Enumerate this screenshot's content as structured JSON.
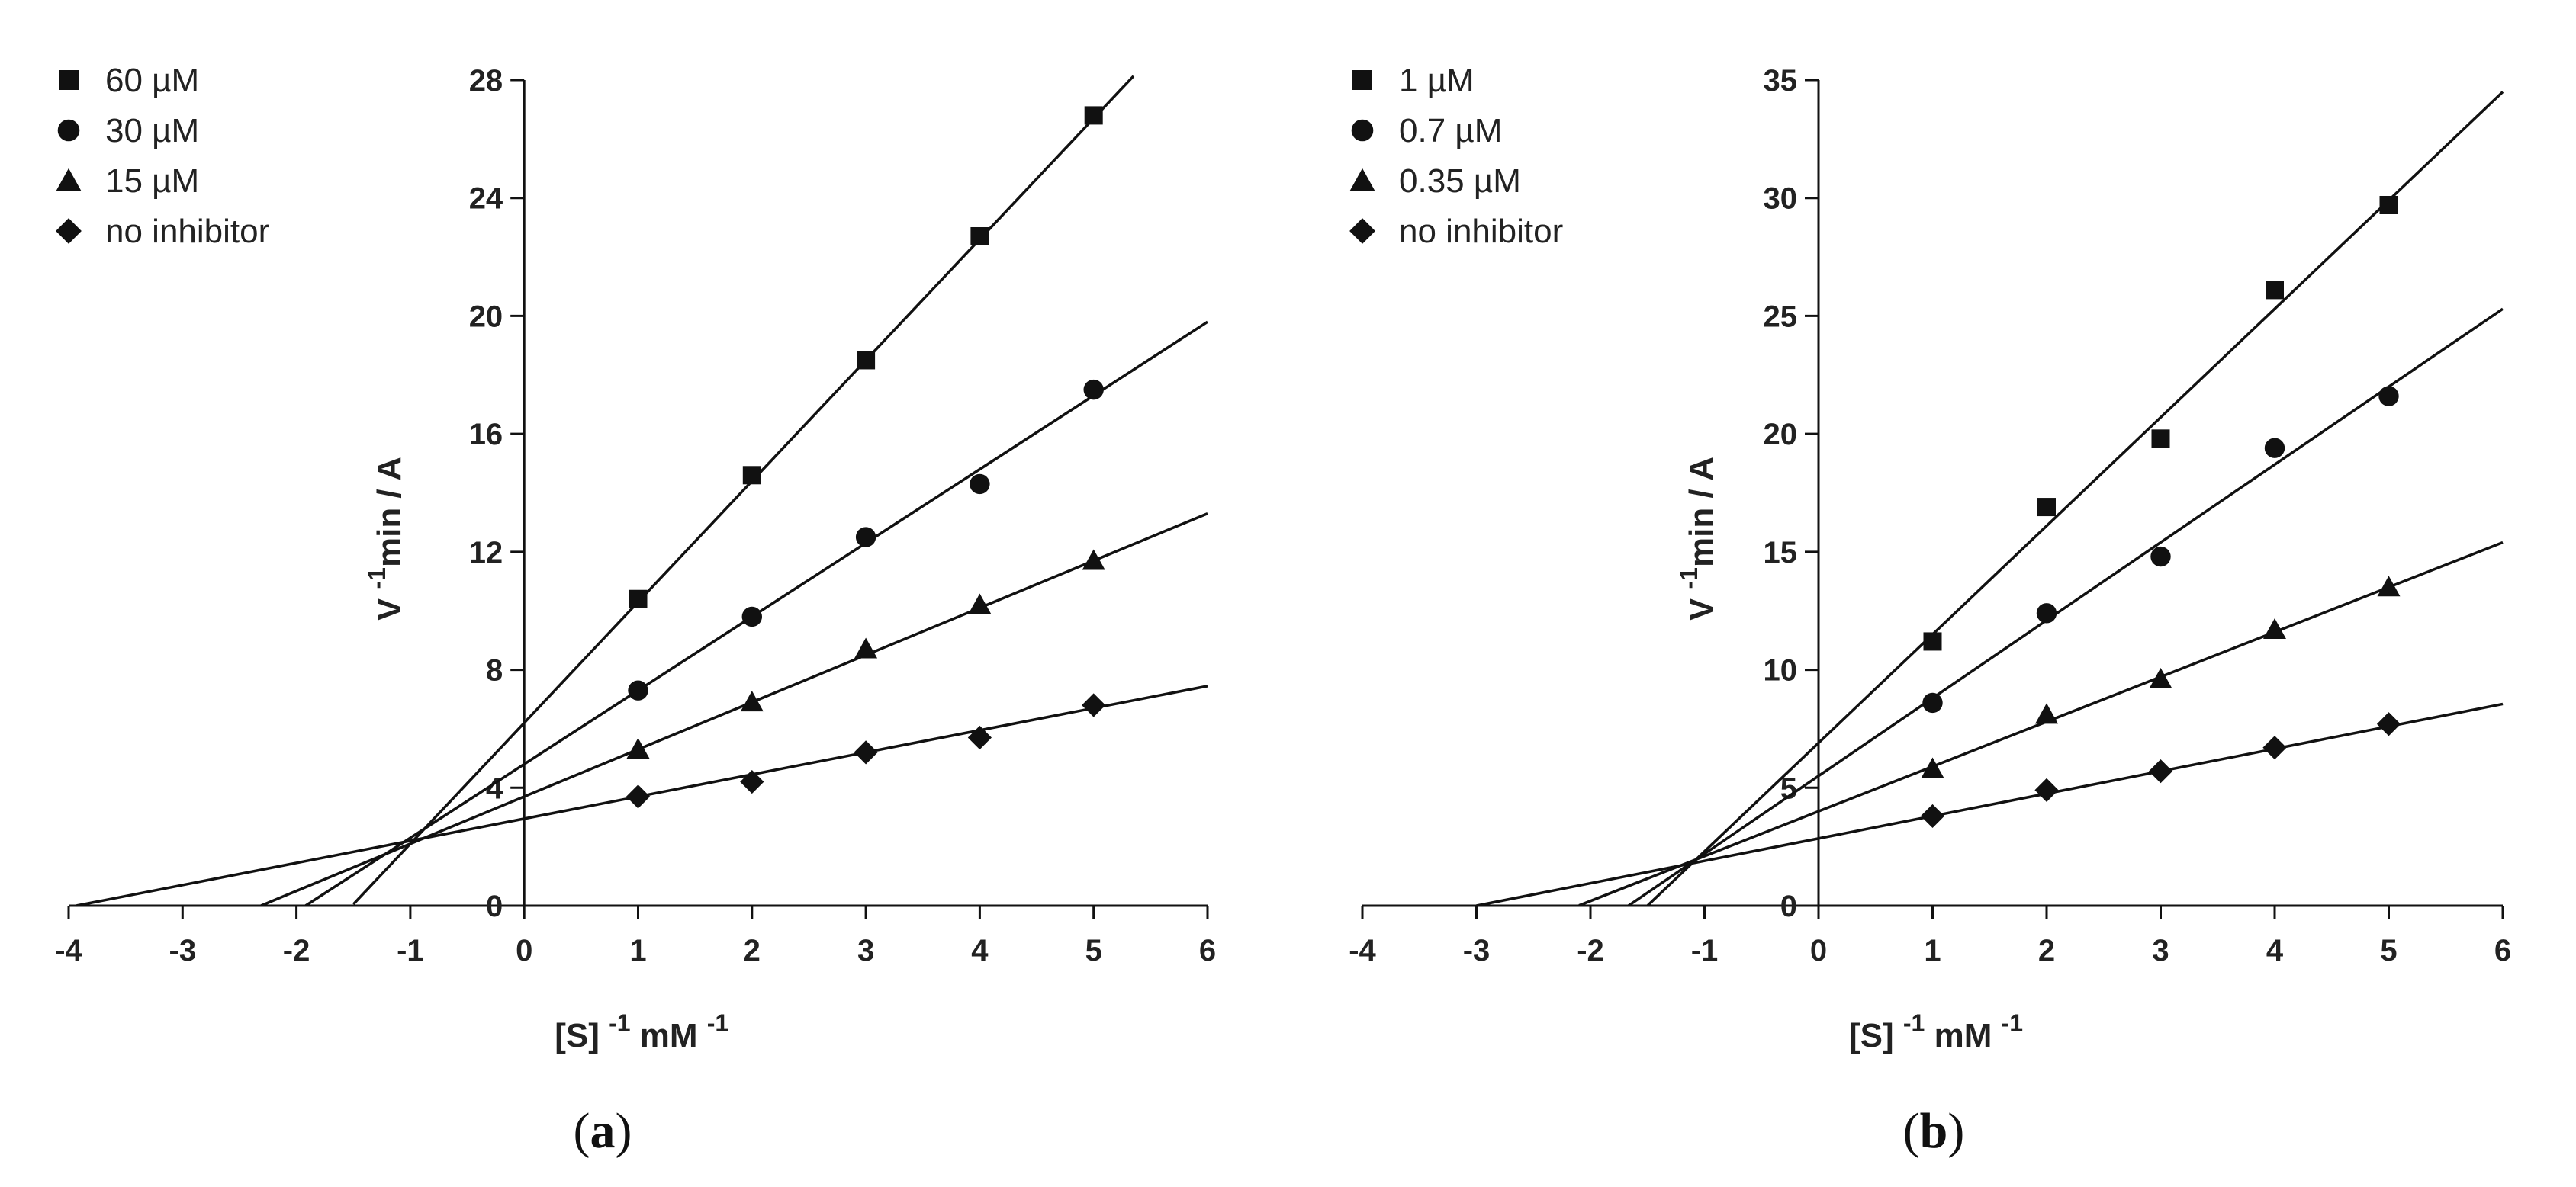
{
  "chart_data": [
    {
      "type": "scatter",
      "panel_label": "a",
      "panel_caption": "(a)",
      "xlabel": "[S] -1 mM -1",
      "ylabel": "V -1min / A",
      "xlim": [
        -4,
        6
      ],
      "ylim": [
        0,
        28
      ],
      "xticks": [
        -4,
        -3,
        -2,
        -1,
        0,
        1,
        2,
        3,
        4,
        5,
        6
      ],
      "yticks": [
        0,
        4,
        8,
        12,
        16,
        20,
        24,
        28
      ],
      "x": [
        1,
        2,
        3,
        4,
        5
      ],
      "series": [
        {
          "name": "60 µM",
          "marker": "square",
          "values": [
            10.4,
            14.6,
            18.5,
            22.7,
            26.8
          ],
          "fit": {
            "slope": 4.1,
            "intercept": 6.2,
            "x_range": [
              -1.5,
              5.35
            ]
          }
        },
        {
          "name": "30 µM",
          "marker": "circle",
          "values": [
            7.3,
            9.8,
            12.5,
            14.3,
            17.5
          ],
          "fit": {
            "slope": 2.5,
            "intercept": 4.8,
            "x_range": [
              -1.92,
              6
            ]
          }
        },
        {
          "name": "15 µM",
          "marker": "triangle",
          "values": [
            5.3,
            6.9,
            8.7,
            10.2,
            11.7
          ],
          "fit": {
            "slope": 1.6,
            "intercept": 3.7,
            "x_range": [
              -2.31,
              6
            ]
          }
        },
        {
          "name": "no inhibitor",
          "marker": "diamond",
          "values": [
            3.7,
            4.2,
            5.2,
            5.7,
            6.8
          ],
          "fit": {
            "slope": 0.75,
            "intercept": 2.95,
            "x_range": [
              -3.93,
              6
            ]
          }
        }
      ]
    },
    {
      "type": "scatter",
      "panel_label": "b",
      "panel_caption": "(b)",
      "xlabel": "[S] -1 mM -1",
      "ylabel": "V -1min / A",
      "xlim": [
        -4,
        6
      ],
      "ylim": [
        0,
        35
      ],
      "xticks": [
        -4,
        -3,
        -2,
        -1,
        0,
        1,
        2,
        3,
        4,
        5,
        6
      ],
      "yticks": [
        0,
        5,
        10,
        15,
        20,
        25,
        30,
        35
      ],
      "x": [
        1,
        2,
        3,
        4,
        5
      ],
      "series": [
        {
          "name": "1 µM",
          "marker": "square",
          "values": [
            11.2,
            16.9,
            19.8,
            26.1,
            29.7
          ],
          "fit": {
            "slope": 4.6,
            "intercept": 6.9,
            "x_range": [
              -1.5,
              6
            ]
          }
        },
        {
          "name": "0.7 µM",
          "marker": "circle",
          "values": [
            8.6,
            12.4,
            14.8,
            19.4,
            21.6
          ],
          "fit": {
            "slope": 3.3,
            "intercept": 5.5,
            "x_range": [
              -1.67,
              6
            ]
          }
        },
        {
          "name": "0.35 µM",
          "marker": "triangle",
          "values": [
            5.8,
            8.1,
            9.6,
            11.7,
            13.5
          ],
          "fit": {
            "slope": 1.9,
            "intercept": 4.0,
            "x_range": [
              -2.1,
              6
            ]
          }
        },
        {
          "name": "no inhibitor",
          "marker": "diamond",
          "values": [
            3.8,
            4.9,
            5.7,
            6.7,
            7.7
          ],
          "fit": {
            "slope": 0.95,
            "intercept": 2.85,
            "x_range": [
              -3.0,
              6
            ]
          }
        }
      ]
    }
  ]
}
